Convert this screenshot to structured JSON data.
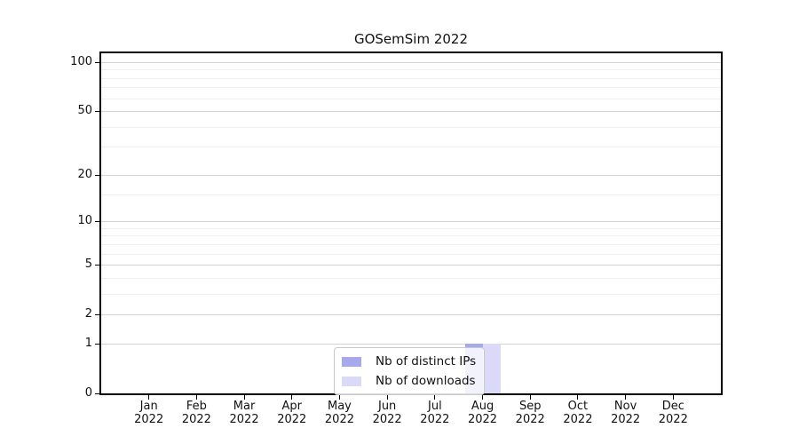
{
  "chart_data": {
    "type": "bar",
    "title": "GOSemSim 2022",
    "categories": [
      "Jan 2022",
      "Feb 2022",
      "Mar 2022",
      "Apr 2022",
      "May 2022",
      "Jun 2022",
      "Jul 2022",
      "Aug 2022",
      "Sep 2022",
      "Oct 2022",
      "Nov 2022",
      "Dec 2022"
    ],
    "series": [
      {
        "name": "Nb of distinct IPs",
        "color": "#a8a8ec",
        "values": [
          0,
          0,
          0,
          0,
          0,
          0,
          0,
          1,
          0,
          0,
          0,
          0
        ]
      },
      {
        "name": "Nb of downloads",
        "color": "#dadaf8",
        "values": [
          0,
          0,
          0,
          0,
          0,
          0,
          0,
          1,
          0,
          0,
          0,
          0
        ]
      }
    ],
    "xlabel": "",
    "ylabel": "",
    "y_scale": "log10(1+x)",
    "y_ticks": [
      0,
      1,
      2,
      5,
      10,
      20,
      50,
      100
    ],
    "y_minor_gridlines": [
      3,
      4,
      6,
      7,
      8,
      9,
      15,
      30,
      40,
      60,
      70,
      80,
      90
    ],
    "ylim": [
      0,
      113
    ],
    "grid": "horizontal",
    "legend_position": "bottom-center"
  }
}
